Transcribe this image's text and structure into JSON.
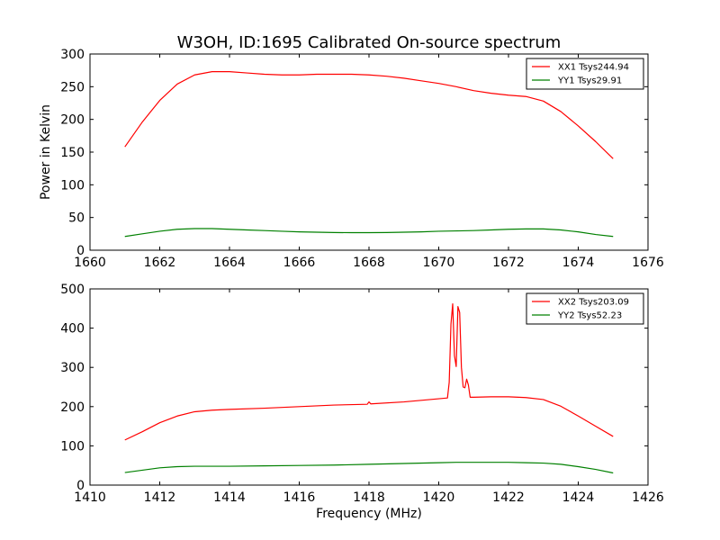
{
  "figure": {
    "title": "W3OH, ID:1695 Calibrated On-source spectrum"
  },
  "chart_data": [
    {
      "type": "line",
      "title": "W3OH, ID:1695 Calibrated On-source spectrum",
      "xlabel": "",
      "ylabel": "Power in Kelvin",
      "xlim": [
        1660,
        1676
      ],
      "ylim": [
        0,
        300
      ],
      "xticks": [
        1660,
        1662,
        1664,
        1666,
        1668,
        1670,
        1672,
        1674,
        1676
      ],
      "yticks": [
        0,
        50,
        100,
        150,
        200,
        250,
        300
      ],
      "grid": false,
      "legend_position": "top-right",
      "series": [
        {
          "name": "XX1 Tsys244.94",
          "color": "#ff0000",
          "x": [
            1661.0,
            1661.5,
            1662.0,
            1662.5,
            1663.0,
            1663.5,
            1664.0,
            1664.5,
            1665.0,
            1665.5,
            1666.0,
            1666.5,
            1667.0,
            1667.5,
            1668.0,
            1668.5,
            1669.0,
            1669.5,
            1670.0,
            1670.5,
            1671.0,
            1671.5,
            1672.0,
            1672.5,
            1673.0,
            1673.5,
            1674.0,
            1674.5,
            1675.0
          ],
          "y": [
            158,
            196,
            229,
            254,
            268,
            273,
            273,
            271,
            269,
            268,
            268,
            269,
            269,
            269,
            268,
            266,
            263,
            259,
            255,
            250,
            244,
            240,
            237,
            235,
            228,
            212,
            190,
            166,
            140
          ]
        },
        {
          "name": "YY1 Tsys29.91",
          "color": "#008000",
          "x": [
            1661.0,
            1661.5,
            1662.0,
            1662.5,
            1663.0,
            1663.5,
            1664.0,
            1664.5,
            1665.0,
            1665.5,
            1666.0,
            1666.5,
            1667.0,
            1667.5,
            1668.0,
            1668.5,
            1669.0,
            1669.5,
            1670.0,
            1670.5,
            1671.0,
            1671.5,
            1672.0,
            1672.5,
            1673.0,
            1673.5,
            1674.0,
            1674.5,
            1675.0
          ],
          "y": [
            21,
            25,
            29,
            32,
            33,
            33,
            32,
            31,
            30,
            29,
            28,
            27.5,
            27,
            26.8,
            26.8,
            27,
            27.5,
            28,
            29,
            29.5,
            30,
            31,
            32,
            32.5,
            32.5,
            31,
            28,
            24,
            21
          ]
        }
      ]
    },
    {
      "type": "line",
      "title": "",
      "xlabel": "Frequency (MHz)",
      "ylabel": "",
      "xlim": [
        1410,
        1426
      ],
      "ylim": [
        0,
        500
      ],
      "xticks": [
        1410,
        1412,
        1414,
        1416,
        1418,
        1420,
        1422,
        1424,
        1426
      ],
      "yticks": [
        0,
        100,
        200,
        300,
        400,
        500
      ],
      "grid": false,
      "legend_position": "top-right",
      "series": [
        {
          "name": "XX2 Tsys203.09",
          "color": "#ff0000",
          "x": [
            1411.0,
            1411.5,
            1412.0,
            1412.5,
            1413.0,
            1413.5,
            1414.0,
            1415.0,
            1416.0,
            1417.0,
            1417.95,
            1418.0,
            1418.05,
            1419.0,
            1420.0,
            1420.25,
            1420.3,
            1420.35,
            1420.4,
            1420.45,
            1420.5,
            1420.55,
            1420.6,
            1420.65,
            1420.7,
            1420.75,
            1420.8,
            1420.85,
            1420.9,
            1421.0,
            1421.5,
            1422.0,
            1422.5,
            1423.0,
            1423.5,
            1424.0,
            1424.5,
            1425.0
          ],
          "y": [
            115,
            136,
            159,
            176,
            187,
            191,
            193,
            196,
            200,
            204,
            206,
            212,
            207,
            212,
            220,
            222,
            262,
            410,
            462,
            330,
            302,
            455,
            440,
            300,
            250,
            248,
            270,
            255,
            224,
            224,
            225,
            225,
            223,
            218,
            201,
            176,
            150,
            124
          ]
        },
        {
          "name": "YY2 Tsys52.23",
          "color": "#008000",
          "x": [
            1411.0,
            1411.5,
            1412.0,
            1412.5,
            1413.0,
            1413.5,
            1414.0,
            1415.0,
            1416.0,
            1417.0,
            1418.0,
            1419.0,
            1420.0,
            1420.5,
            1421.0,
            1422.0,
            1422.5,
            1423.0,
            1423.5,
            1424.0,
            1424.5,
            1425.0
          ],
          "y": [
            32,
            38,
            44,
            47,
            48,
            48,
            48,
            49,
            50,
            51,
            53,
            55,
            57,
            58,
            58,
            58,
            57,
            56,
            53,
            47,
            40,
            31
          ]
        }
      ]
    }
  ]
}
